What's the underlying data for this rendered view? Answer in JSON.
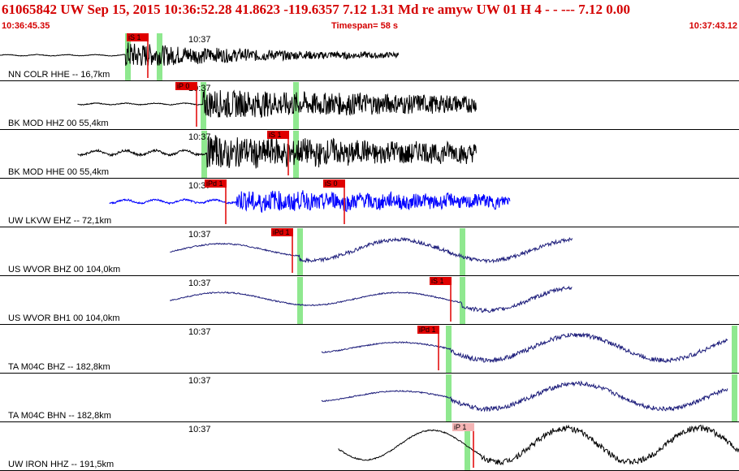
{
  "header": {
    "title": "61065842 UW Sep 15, 2015 10:36:52.28   41.8623 -119.6357  7.12 1.31 Md re    amyw    UW 01 H    4  -  - ---   7.12 0.00",
    "start_time": "10:36:45.35",
    "timespan": "Timespan=  58 s",
    "end_time": "10:37:43.12"
  },
  "time_marker": "10:37",
  "colors": {
    "title": "#d40000",
    "pick_tag": "#e00000",
    "pick_tag_pale": "#f4b4b4",
    "highlight": "#8fe88f",
    "pick_line": "#e00000"
  },
  "traces": [
    {
      "label": "NN COLR HHE --  16,7km",
      "color": "#000000",
      "start": 0.0,
      "end": 0.54,
      "onset": 0.17,
      "pre_amp": 0.04,
      "post_amp": 0.55,
      "period": 0.006,
      "decay": 0.18,
      "type": "burst",
      "picks": [
        {
          "text": "iS 1",
          "pos": 0.185
        }
      ],
      "highlights": [
        0.172,
        0.215
      ]
    },
    {
      "label": "BK MOD HHZ 00  55,4km",
      "color": "#000000",
      "start": 0.105,
      "end": 0.645,
      "onset": 0.275,
      "pre_amp": 0.05,
      "post_amp": 0.6,
      "period": 0.007,
      "decay": 0.6,
      "type": "burst",
      "picks": [
        {
          "text": "iP 0",
          "pos": 0.25
        }
      ],
      "highlights": [
        0.275,
        0.4
      ]
    },
    {
      "label": "BK MOD HHE 00  55,4km",
      "color": "#000000",
      "start": 0.105,
      "end": 0.645,
      "onset": 0.28,
      "pre_amp": 0.15,
      "post_amp": 0.65,
      "period": 0.007,
      "decay": 0.5,
      "type": "burst",
      "picks": [
        {
          "text": "iS 1",
          "pos": 0.375
        }
      ],
      "highlights": [
        0.276,
        0.4
      ]
    },
    {
      "label": "UW LKVW EHZ --  72,1km",
      "color": "#0000ff",
      "start": 0.148,
      "end": 0.69,
      "onset": 0.32,
      "pre_amp": 0.12,
      "post_amp": 0.45,
      "period": 0.004,
      "decay": 0.4,
      "type": "burst",
      "picks": [
        {
          "text": "iPd 1",
          "pos": 0.29
        },
        {
          "text": "iS 0",
          "pos": 0.45
        }
      ],
      "highlights": []
    },
    {
      "label": "US WVOR BHZ 00  104,0km",
      "color": "#1c1c7a",
      "start": 0.23,
      "end": 0.775,
      "onset": 0.405,
      "pre_amp": 0.3,
      "post_amp": 0.5,
      "period": 0.06,
      "decay": 0.0,
      "type": "wave",
      "picks": [
        {
          "text": "iPd 1",
          "pos": 0.38
        }
      ],
      "highlights": [
        0.405,
        0.625
      ]
    },
    {
      "label": "US WVOR BH1 00  104,0km",
      "color": "#1c1c7a",
      "start": 0.23,
      "end": 0.775,
      "onset": 0.625,
      "pre_amp": 0.3,
      "post_amp": 0.55,
      "period": 0.06,
      "decay": 0.0,
      "type": "wave",
      "picks": [
        {
          "text": "iS 1",
          "pos": 0.595
        }
      ],
      "highlights": [
        0.405,
        0.625
      ]
    },
    {
      "label": "TA M04C BHZ --  182,8km",
      "color": "#1c1c7a",
      "start": 0.435,
      "end": 0.985,
      "onset": 0.61,
      "pre_amp": 0.25,
      "post_amp": 0.6,
      "period": 0.06,
      "decay": 0.0,
      "type": "wave",
      "picks": [
        {
          "text": "iPd 1",
          "pos": 0.578
        }
      ],
      "highlights": [
        0.607,
        0.993
      ]
    },
    {
      "label": "TA M04C BHN --  182,8km",
      "color": "#1c1c7a",
      "start": 0.435,
      "end": 0.985,
      "onset": 0.61,
      "pre_amp": 0.25,
      "post_amp": 0.6,
      "period": 0.06,
      "decay": 0.0,
      "type": "wave",
      "picks": [],
      "highlights": [
        0.607,
        0.993
      ]
    },
    {
      "label": "UW IRON HHZ --  191,5km",
      "color": "#000000",
      "start": 0.458,
      "end": 1.0,
      "onset": 0.65,
      "pre_amp": 0.7,
      "post_amp": 0.8,
      "period": 0.045,
      "decay": 0.0,
      "type": "wave",
      "picks": [
        {
          "text": "iP 1",
          "pos": 0.625,
          "pale": true
        }
      ],
      "highlights": [
        0.632
      ]
    }
  ]
}
